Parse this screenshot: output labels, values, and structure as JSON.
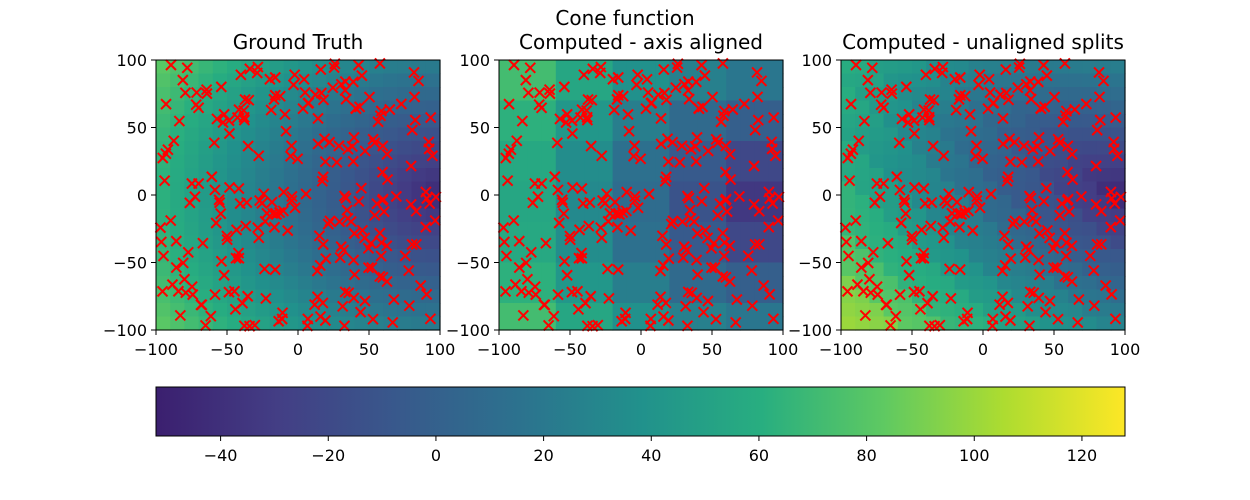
{
  "figure": {
    "suptitle": "Cone function"
  },
  "colors": {
    "marker": "#ff0000",
    "axes": "#000000",
    "viridis": [
      "#3b1f6f",
      "#433e85",
      "#38598c",
      "#2c728e",
      "#21918c",
      "#28ae80",
      "#5ec962",
      "#addc30",
      "#fde725"
    ]
  },
  "chart_data": [
    {
      "type": "heatmap",
      "title": "Ground Truth",
      "xlim": [
        -100,
        100
      ],
      "ylim": [
        -100,
        100
      ],
      "xticks": [
        -100,
        -50,
        0,
        50,
        100
      ],
      "yticks": [
        100,
        50,
        0,
        -50,
        -100
      ],
      "field": "cone",
      "markers": "sample points (red x)"
    },
    {
      "type": "heatmap",
      "title": "Computed - axis aligned",
      "xlim": [
        -100,
        100
      ],
      "ylim": [
        -100,
        100
      ],
      "xticks": [
        -100,
        -50,
        0,
        50,
        100
      ],
      "yticks": [
        100,
        50,
        0,
        -50,
        -100
      ],
      "field": "axis-aligned tree approximation",
      "markers": "sample points (red x)"
    },
    {
      "type": "heatmap",
      "title": "Computed - unaligned splits",
      "xlim": [
        -100,
        100
      ],
      "ylim": [
        -100,
        100
      ],
      "xticks": [
        -100,
        -50,
        0,
        50,
        100
      ],
      "yticks": [
        100,
        50,
        0,
        -50,
        -100
      ],
      "field": "unaligned split tree approximation",
      "markers": "sample points (red x)"
    }
  ],
  "colorbar": {
    "orientation": "horizontal",
    "range": [
      -52,
      128
    ],
    "ticks": [
      -40,
      -20,
      0,
      20,
      40,
      60,
      80,
      100,
      120
    ],
    "tick_labels": [
      "−40",
      "−20",
      "0",
      "20",
      "40",
      "60",
      "80",
      "100",
      "120"
    ],
    "colormap": "viridis"
  }
}
